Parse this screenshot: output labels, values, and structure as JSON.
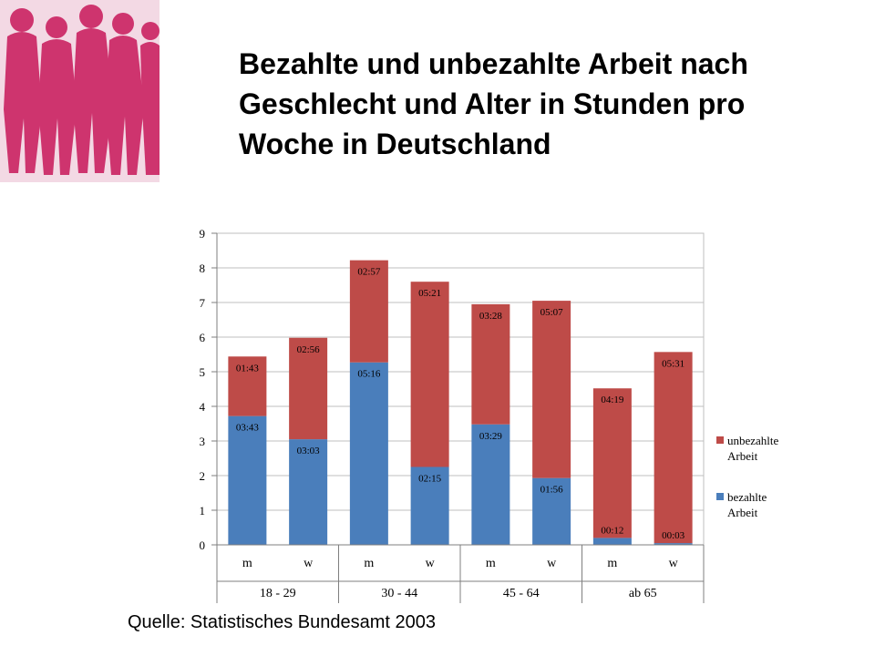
{
  "title": {
    "line1": "Bezahlte und unbezahlte Arbeit nach",
    "line2": "Geschlecht und Alter in Stunden pro",
    "line3": "Woche in Deutschland"
  },
  "source": "Quelle: Statistisches Bundesamt 2003",
  "logo": {
    "description_icon": "women-silhouettes-logo",
    "color": "#c8185a"
  },
  "chart_data": {
    "type": "bar",
    "stacked": true,
    "categories": [
      "m",
      "w",
      "m",
      "w",
      "m",
      "w",
      "m",
      "w"
    ],
    "groups": [
      {
        "label": "18 - 29",
        "span": 2
      },
      {
        "label": "30 - 44",
        "span": 2
      },
      {
        "label": "45 - 64",
        "span": 2
      },
      {
        "label": "ab 65",
        "span": 2
      }
    ],
    "series": [
      {
        "name": "bezahlte Arbeit",
        "color": "#4a7ebb",
        "values": [
          3.72,
          3.05,
          5.27,
          2.25,
          3.48,
          1.93,
          0.2,
          0.05
        ],
        "labels": [
          "03:43",
          "03:03",
          "05:16",
          "02:15",
          "03:29",
          "01:56",
          "00:12",
          "00:03"
        ]
      },
      {
        "name": "unbezahlte Arbeit",
        "color": "#be4b48",
        "values": [
          1.72,
          2.93,
          2.95,
          5.35,
          3.47,
          5.12,
          4.32,
          5.52
        ],
        "labels": [
          "01:43",
          "02:56",
          "02:57",
          "05:21",
          "03:28",
          "05:07",
          "04:19",
          "05:31"
        ]
      }
    ],
    "legend": [
      {
        "line1": "unbezahlte",
        "line2": "Arbeit",
        "color": "#be4b48"
      },
      {
        "line1": "bezahlte",
        "line2": "Arbeit",
        "color": "#4a7ebb"
      }
    ],
    "yticks": [
      "0",
      "1",
      "2",
      "3",
      "4",
      "5",
      "6",
      "7",
      "8",
      "9"
    ],
    "ylim": [
      0,
      9
    ],
    "grid": true,
    "legend_position": "right"
  }
}
